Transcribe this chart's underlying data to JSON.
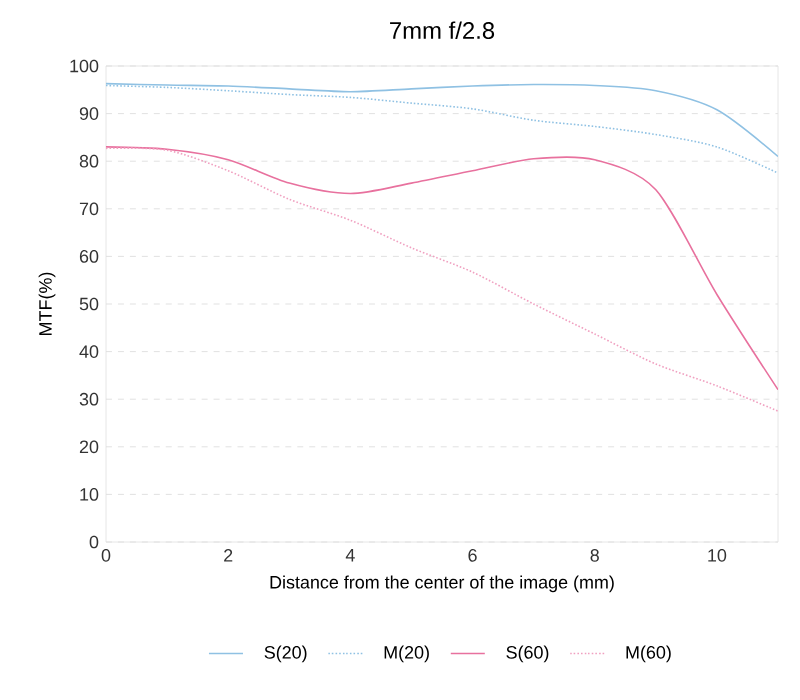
{
  "chart_data": {
    "type": "line",
    "title": "7mm f/2.8",
    "xlabel": "Distance from the center of the image (mm)",
    "ylabel": "MTF(%)",
    "x": [
      0,
      1,
      2,
      3,
      4,
      5,
      6,
      7,
      8,
      9,
      10,
      11
    ],
    "series": [
      {
        "name": "S(20)",
        "color": "#8fc1e3",
        "line_style": "solid",
        "values": [
          96.3,
          96,
          95.8,
          95.2,
          94.6,
          95.2,
          95.8,
          96.1,
          95.9,
          94.8,
          90.8,
          81
        ]
      },
      {
        "name": "M(20)",
        "color": "#8fc1e3",
        "line_style": "dotted",
        "values": [
          95.9,
          95.5,
          94.8,
          94,
          93.4,
          92.2,
          91,
          88.6,
          87.3,
          85.6,
          83,
          77.5
        ]
      },
      {
        "name": "S(60)",
        "color": "#e8719e",
        "line_style": "solid",
        "values": [
          83,
          82.5,
          80.3,
          75.4,
          73.2,
          75.4,
          78,
          80.5,
          80.3,
          74,
          52,
          32
        ]
      },
      {
        "name": "M(60)",
        "color": "#f0a0c0",
        "line_style": "dotted",
        "values": [
          82.7,
          82.3,
          78,
          72,
          67.6,
          61.8,
          56.7,
          50,
          43.7,
          37.4,
          32.8,
          27.5
        ]
      }
    ],
    "xlim": [
      0,
      11
    ],
    "ylim": [
      0,
      100
    ],
    "xticks": [
      0,
      2,
      4,
      6,
      8,
      10
    ],
    "yticks": [
      0,
      10,
      20,
      30,
      40,
      50,
      60,
      70,
      80,
      90,
      100
    ],
    "grid": "y",
    "legend": "bottom"
  }
}
